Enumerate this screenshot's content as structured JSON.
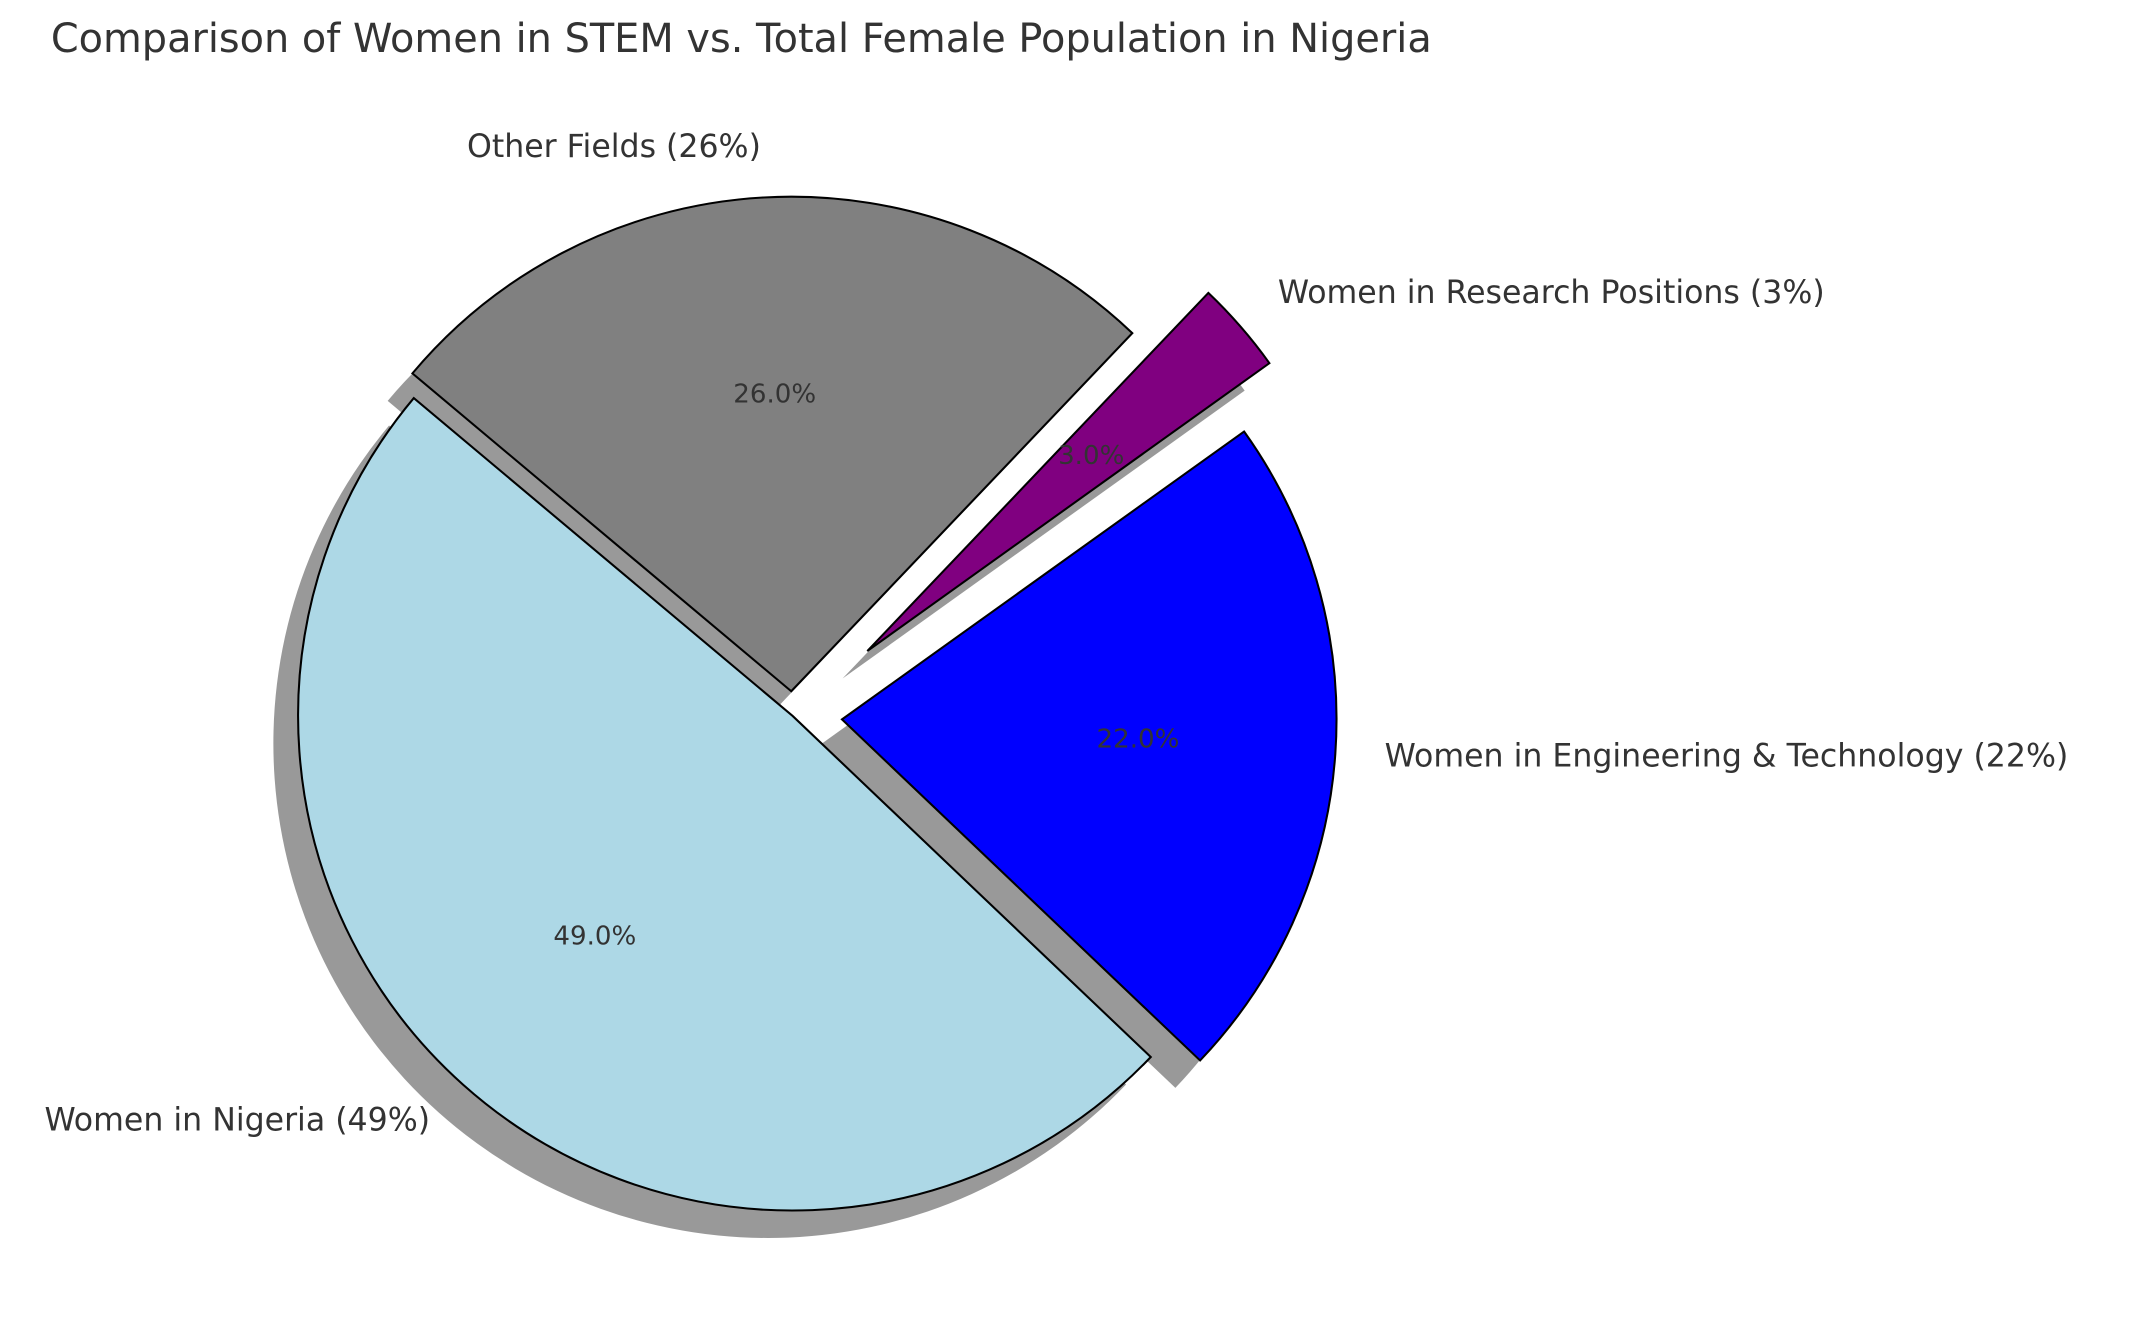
{
  "chart_data": {
    "type": "pie",
    "title": "Comparison of Women in STEM vs. Total Female Population in Nigeria",
    "categories": [
      "Women in Nigeria (49%)",
      "Women in Engineering & Technology (22%)",
      "Women in Research Positions (3%)",
      "Other Fields (26%)"
    ],
    "values": [
      49,
      22,
      3,
      26
    ],
    "value_labels": [
      "49.0%",
      "22.0%",
      "3.0%",
      "26.0%"
    ],
    "colors": [
      "#add8e6",
      "#0000ff",
      "#800080",
      "#808080"
    ],
    "explode": [
      0,
      0.1,
      0.2,
      0.05
    ],
    "start_angle": 140,
    "shadow": true
  }
}
